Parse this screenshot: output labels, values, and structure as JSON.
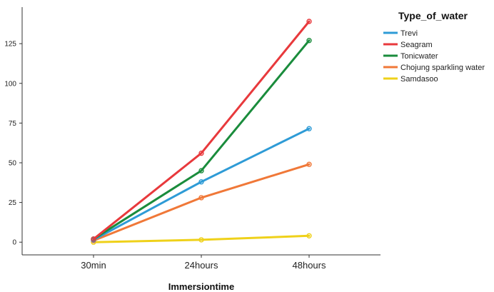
{
  "chart_data": {
    "type": "line",
    "title": "",
    "xlabel": "Immersiontime",
    "ylabel": "",
    "categories": [
      "30min",
      "24hours",
      "48hours"
    ],
    "ylim": [
      -8,
      148
    ],
    "yticks": [
      0,
      25,
      50,
      75,
      100,
      125
    ],
    "grid": false,
    "legend": {
      "title": "Type_of_water",
      "position": "right"
    },
    "series": [
      {
        "name": "Trevi",
        "color": "#2e9bd6",
        "values": [
          1.5,
          38,
          71.5
        ]
      },
      {
        "name": "Seagram",
        "color": "#e8393c",
        "values": [
          2,
          56,
          139
        ]
      },
      {
        "name": "Tonicwater",
        "color": "#1a8c3c",
        "values": [
          2,
          45,
          127
        ]
      },
      {
        "name": "Chojung sparkling water",
        "color": "#f07838",
        "values": [
          1,
          28,
          49
        ]
      },
      {
        "name": "Samdasoo",
        "color": "#efd11a",
        "values": [
          0,
          1.5,
          4
        ]
      }
    ]
  }
}
